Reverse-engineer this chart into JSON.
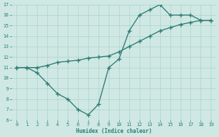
{
  "line1_x": [
    0,
    1,
    2,
    3,
    4,
    5,
    6,
    7,
    8,
    9,
    10,
    11,
    12,
    13,
    14,
    15,
    16,
    17,
    18,
    19
  ],
  "line1_y": [
    11.0,
    11.0,
    10.5,
    9.5,
    8.5,
    8.0,
    7.0,
    6.5,
    7.5,
    11.0,
    11.8,
    14.5,
    16.0,
    16.5,
    17.0,
    16.0,
    16.0,
    16.0,
    15.5,
    15.5
  ],
  "line2_x": [
    0,
    1,
    2,
    3,
    4,
    5,
    6,
    7,
    8,
    9,
    10,
    11,
    12,
    13,
    14,
    15,
    16,
    17,
    18,
    19
  ],
  "line2_y": [
    11.0,
    11.0,
    11.0,
    11.2,
    11.5,
    11.6,
    11.7,
    11.9,
    12.0,
    12.1,
    12.5,
    13.0,
    13.5,
    14.0,
    14.5,
    14.8,
    15.1,
    15.3,
    15.5,
    15.5
  ],
  "color": "#2d7d74",
  "bg_color": "#cfe8e3",
  "grid_color": "#b0d5cf",
  "xlabel": "Humidex (Indice chaleur)",
  "ylim": [
    6,
    17
  ],
  "xlim": [
    -0.5,
    19.5
  ],
  "yticks": [
    6,
    7,
    8,
    9,
    10,
    11,
    12,
    13,
    14,
    15,
    16,
    17
  ],
  "xticks": [
    0,
    1,
    2,
    3,
    4,
    5,
    6,
    7,
    8,
    9,
    10,
    11,
    12,
    13,
    14,
    15,
    16,
    17,
    18,
    19
  ],
  "marker": "+",
  "marker_size": 4,
  "line_width": 1.0
}
